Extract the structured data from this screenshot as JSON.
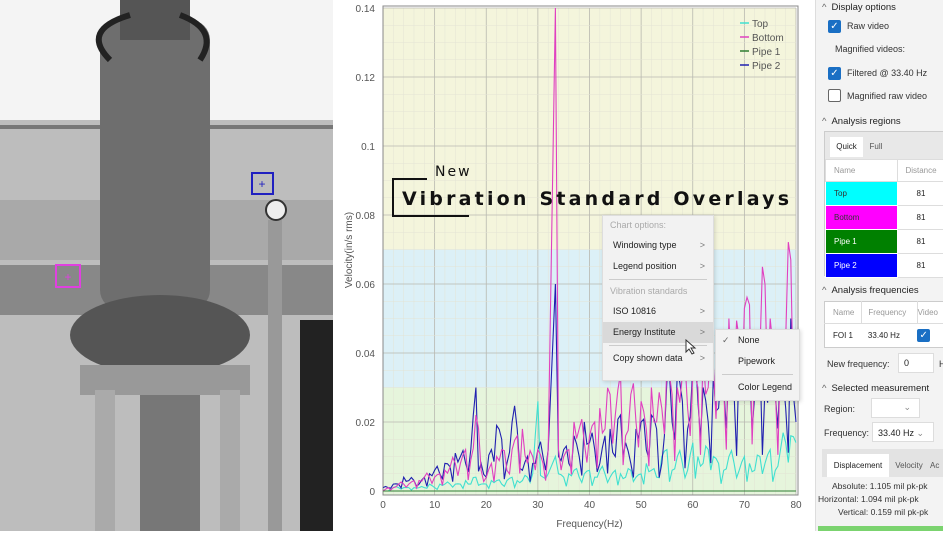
{
  "overlay": {
    "kicker": "New",
    "title": "Vibration Standard Overlays"
  },
  "context_menu": {
    "header_chart": "Chart options:",
    "windowing": "Windowing type",
    "legend_pos": "Legend position",
    "header_std": "Vibration standards",
    "iso": "ISO 10816",
    "energy": "Energy Institute",
    "copy": "Copy shown data",
    "arrow": ">"
  },
  "submenu": {
    "none": "None",
    "check": "✓",
    "pipework": "Pipework",
    "color_legend": "Color Legend"
  },
  "panel": {
    "display_options": "Display options",
    "raw_video": "Raw video",
    "magnified_videos": "Magnified videos:",
    "filtered": "Filtered @ 33.40 Hz",
    "magnified_raw": "Magnified raw video",
    "analysis_regions": "Analysis regions",
    "tab_quick": "Quick",
    "tab_full": "Full",
    "col_name": "Name",
    "col_distance": "Distance",
    "regions": [
      {
        "name": "Top",
        "distance": "81",
        "color": "#00ffff"
      },
      {
        "name": "Bottom",
        "distance": "81",
        "color": "#ff00ff"
      },
      {
        "name": "Pipe 1",
        "distance": "81",
        "color": "#008000"
      },
      {
        "name": "Pipe 2",
        "distance": "81",
        "color": "#0000ff"
      }
    ],
    "analysis_frequencies": "Analysis frequencies",
    "col_fname": "Name",
    "col_freq": "Frequency",
    "col_video": "Video",
    "foi_name": "FOI 1",
    "foi_freq": "33.40 Hz",
    "new_freq_label": "New frequency:",
    "new_freq_value": "0",
    "new_freq_unit": "H",
    "selected_measurement": "Selected measurement",
    "region_label": "Region:",
    "frequency_label": "Frequency:",
    "frequency_value": "33.40 Hz",
    "tab_disp": "Displacement",
    "tab_vel": "Velocity",
    "tab_acc": "Ac",
    "absolute": "Absolute: 1.105 mil pk-pk",
    "horizontal": "Horizontal: 1.094 mil pk-pk",
    "vertical": "Vertical: 0.159 mil pk-pk"
  },
  "chart_data": {
    "type": "line",
    "xlabel": "Frequency(Hz)",
    "ylabel": "Velocity(in/s rms)",
    "xlim": [
      0,
      80
    ],
    "ylim": [
      0,
      0.14
    ],
    "xticks": [
      "0",
      "10",
      "20",
      "30",
      "40",
      "50",
      "60",
      "70",
      "80"
    ],
    "yticks": [
      "0",
      "0.02",
      "0.04",
      "0.06",
      "0.08",
      "0.1",
      "0.12",
      "0.14"
    ],
    "bands": [
      {
        "from": 0,
        "to": 0.03,
        "color": "#e6f5dc"
      },
      {
        "from": 0.03,
        "to": 0.07,
        "color": "#dcf0f7"
      },
      {
        "from": 0.07,
        "to": 0.14,
        "color": "#f4f5dc"
      }
    ],
    "legend": "top-right",
    "x": [
      0,
      1,
      2,
      3,
      4,
      5,
      6,
      7,
      8,
      9,
      10,
      11,
      12,
      13,
      14,
      15,
      16,
      17,
      18,
      19,
      20,
      21,
      22,
      23,
      24,
      25,
      26,
      27,
      28,
      29,
      30,
      31,
      32,
      33.4,
      34,
      35,
      36,
      37,
      38,
      39,
      40,
      41,
      42,
      43,
      44,
      45,
      46,
      47,
      48,
      49,
      50,
      51,
      52,
      53,
      54,
      55,
      56,
      57,
      58,
      59,
      60,
      61,
      62,
      63,
      64,
      65,
      66,
      67,
      68,
      69,
      70,
      71,
      72,
      73,
      74,
      75,
      76,
      77,
      78,
      79,
      80
    ],
    "series": [
      {
        "name": "Top",
        "color": "#40e0d0",
        "values": [
          0,
          0,
          0.001,
          0.001,
          0.001,
          0.001,
          0.001,
          0.001,
          0.001,
          0.002,
          0.001,
          0.002,
          0.002,
          0.002,
          0.002,
          0.002,
          0.003,
          0.002,
          0.004,
          0.002,
          0.002,
          0.003,
          0.003,
          0.002,
          0.003,
          0.004,
          0.003,
          0.003,
          0.004,
          0.005,
          0.026,
          0.004,
          0.005,
          0.01,
          0.005,
          0.004,
          0.005,
          0.006,
          0.004,
          0.005,
          0.006,
          0.004,
          0.006,
          0.005,
          0.004,
          0.006,
          0.005,
          0.004,
          0.006,
          0.004,
          0.005,
          0.008,
          0.006,
          0.004,
          0.01,
          0.012,
          0.006,
          0.01,
          0.008,
          0.006,
          0.014,
          0.01,
          0.008,
          0.012,
          0.01,
          0.008,
          0.006,
          0.01,
          0.008,
          0.006,
          0.01,
          0.008,
          0.006,
          0.01,
          0.008,
          0.012,
          0.006,
          0.012,
          0.014,
          0.016,
          0.014
        ]
      },
      {
        "name": "Bottom",
        "color": "#e040c0",
        "values": [
          0,
          0.001,
          0.001,
          0.002,
          0.002,
          0.002,
          0.003,
          0.003,
          0.004,
          0.004,
          0.004,
          0.005,
          0.006,
          0.007,
          0.008,
          0.008,
          0.012,
          0.009,
          0.022,
          0.006,
          0.004,
          0.008,
          0.01,
          0.012,
          0.006,
          0.012,
          0.016,
          0.018,
          0.008,
          0.01,
          0.012,
          0.008,
          0.012,
          0.14,
          0.012,
          0.01,
          0.012,
          0.02,
          0.018,
          0.014,
          0.016,
          0.02,
          0.024,
          0.018,
          0.028,
          0.022,
          0.034,
          0.016,
          0.028,
          0.02,
          0.026,
          0.018,
          0.03,
          0.02,
          0.024,
          0.036,
          0.028,
          0.03,
          0.034,
          0.024,
          0.034,
          0.03,
          0.04,
          0.03,
          0.036,
          0.04,
          0.03,
          0.05,
          0.032,
          0.044,
          0.053,
          0.054,
          0.036,
          0.04,
          0.06,
          0.05,
          0.03,
          0.04,
          0.044,
          0.067,
          0.028
        ]
      },
      {
        "name": "Pipe 1",
        "color": "#2e7d32",
        "values": [
          0,
          0,
          0,
          0,
          0,
          0,
          0,
          0,
          0,
          0,
          0,
          0,
          0,
          0,
          0,
          0,
          0,
          0,
          0,
          0,
          0,
          0,
          0,
          0,
          0,
          0,
          0,
          0,
          0,
          0,
          0,
          0,
          0,
          0,
          0,
          0,
          0,
          0,
          0,
          0,
          0,
          0,
          0,
          0,
          0,
          0,
          0,
          0,
          0,
          0,
          0,
          0,
          0,
          0,
          0,
          0,
          0,
          0,
          0,
          0,
          0,
          0,
          0,
          0,
          0,
          0,
          0,
          0,
          0,
          0,
          0,
          0,
          0,
          0,
          0,
          0,
          0,
          0,
          0,
          0,
          0
        ]
      },
      {
        "name": "Pipe 2",
        "color": "#2020b0",
        "values": [
          0.001,
          0.001,
          0.002,
          0.002,
          0.004,
          0.003,
          0.003,
          0.002,
          0.004,
          0.005,
          0.006,
          0.005,
          0.008,
          0.007,
          0.011,
          0.01,
          0.008,
          0.012,
          0.03,
          0.008,
          0.004,
          0.012,
          0.019,
          0.015,
          0.008,
          0.02,
          0.018,
          0.006,
          0.01,
          0.008,
          0.012,
          0.01,
          0.012,
          0.06,
          0.01,
          0.012,
          0.008,
          0.016,
          0.01,
          0.02,
          0.014,
          0.012,
          0.008,
          0.016,
          0.018,
          0.01,
          0.022,
          0.014,
          0.008,
          0.018,
          0.02,
          0.012,
          0.022,
          0.018,
          0.008,
          0.032,
          0.02,
          0.034,
          0.026,
          0.018,
          0.036,
          0.026,
          0.03,
          0.02,
          0.034,
          0.024,
          0.03,
          0.036,
          0.028,
          0.04,
          0.03,
          0.036,
          0.028,
          0.04,
          0.03,
          0.034,
          0.028,
          0.038,
          0.024,
          0.05,
          0.02
        ]
      }
    ]
  }
}
